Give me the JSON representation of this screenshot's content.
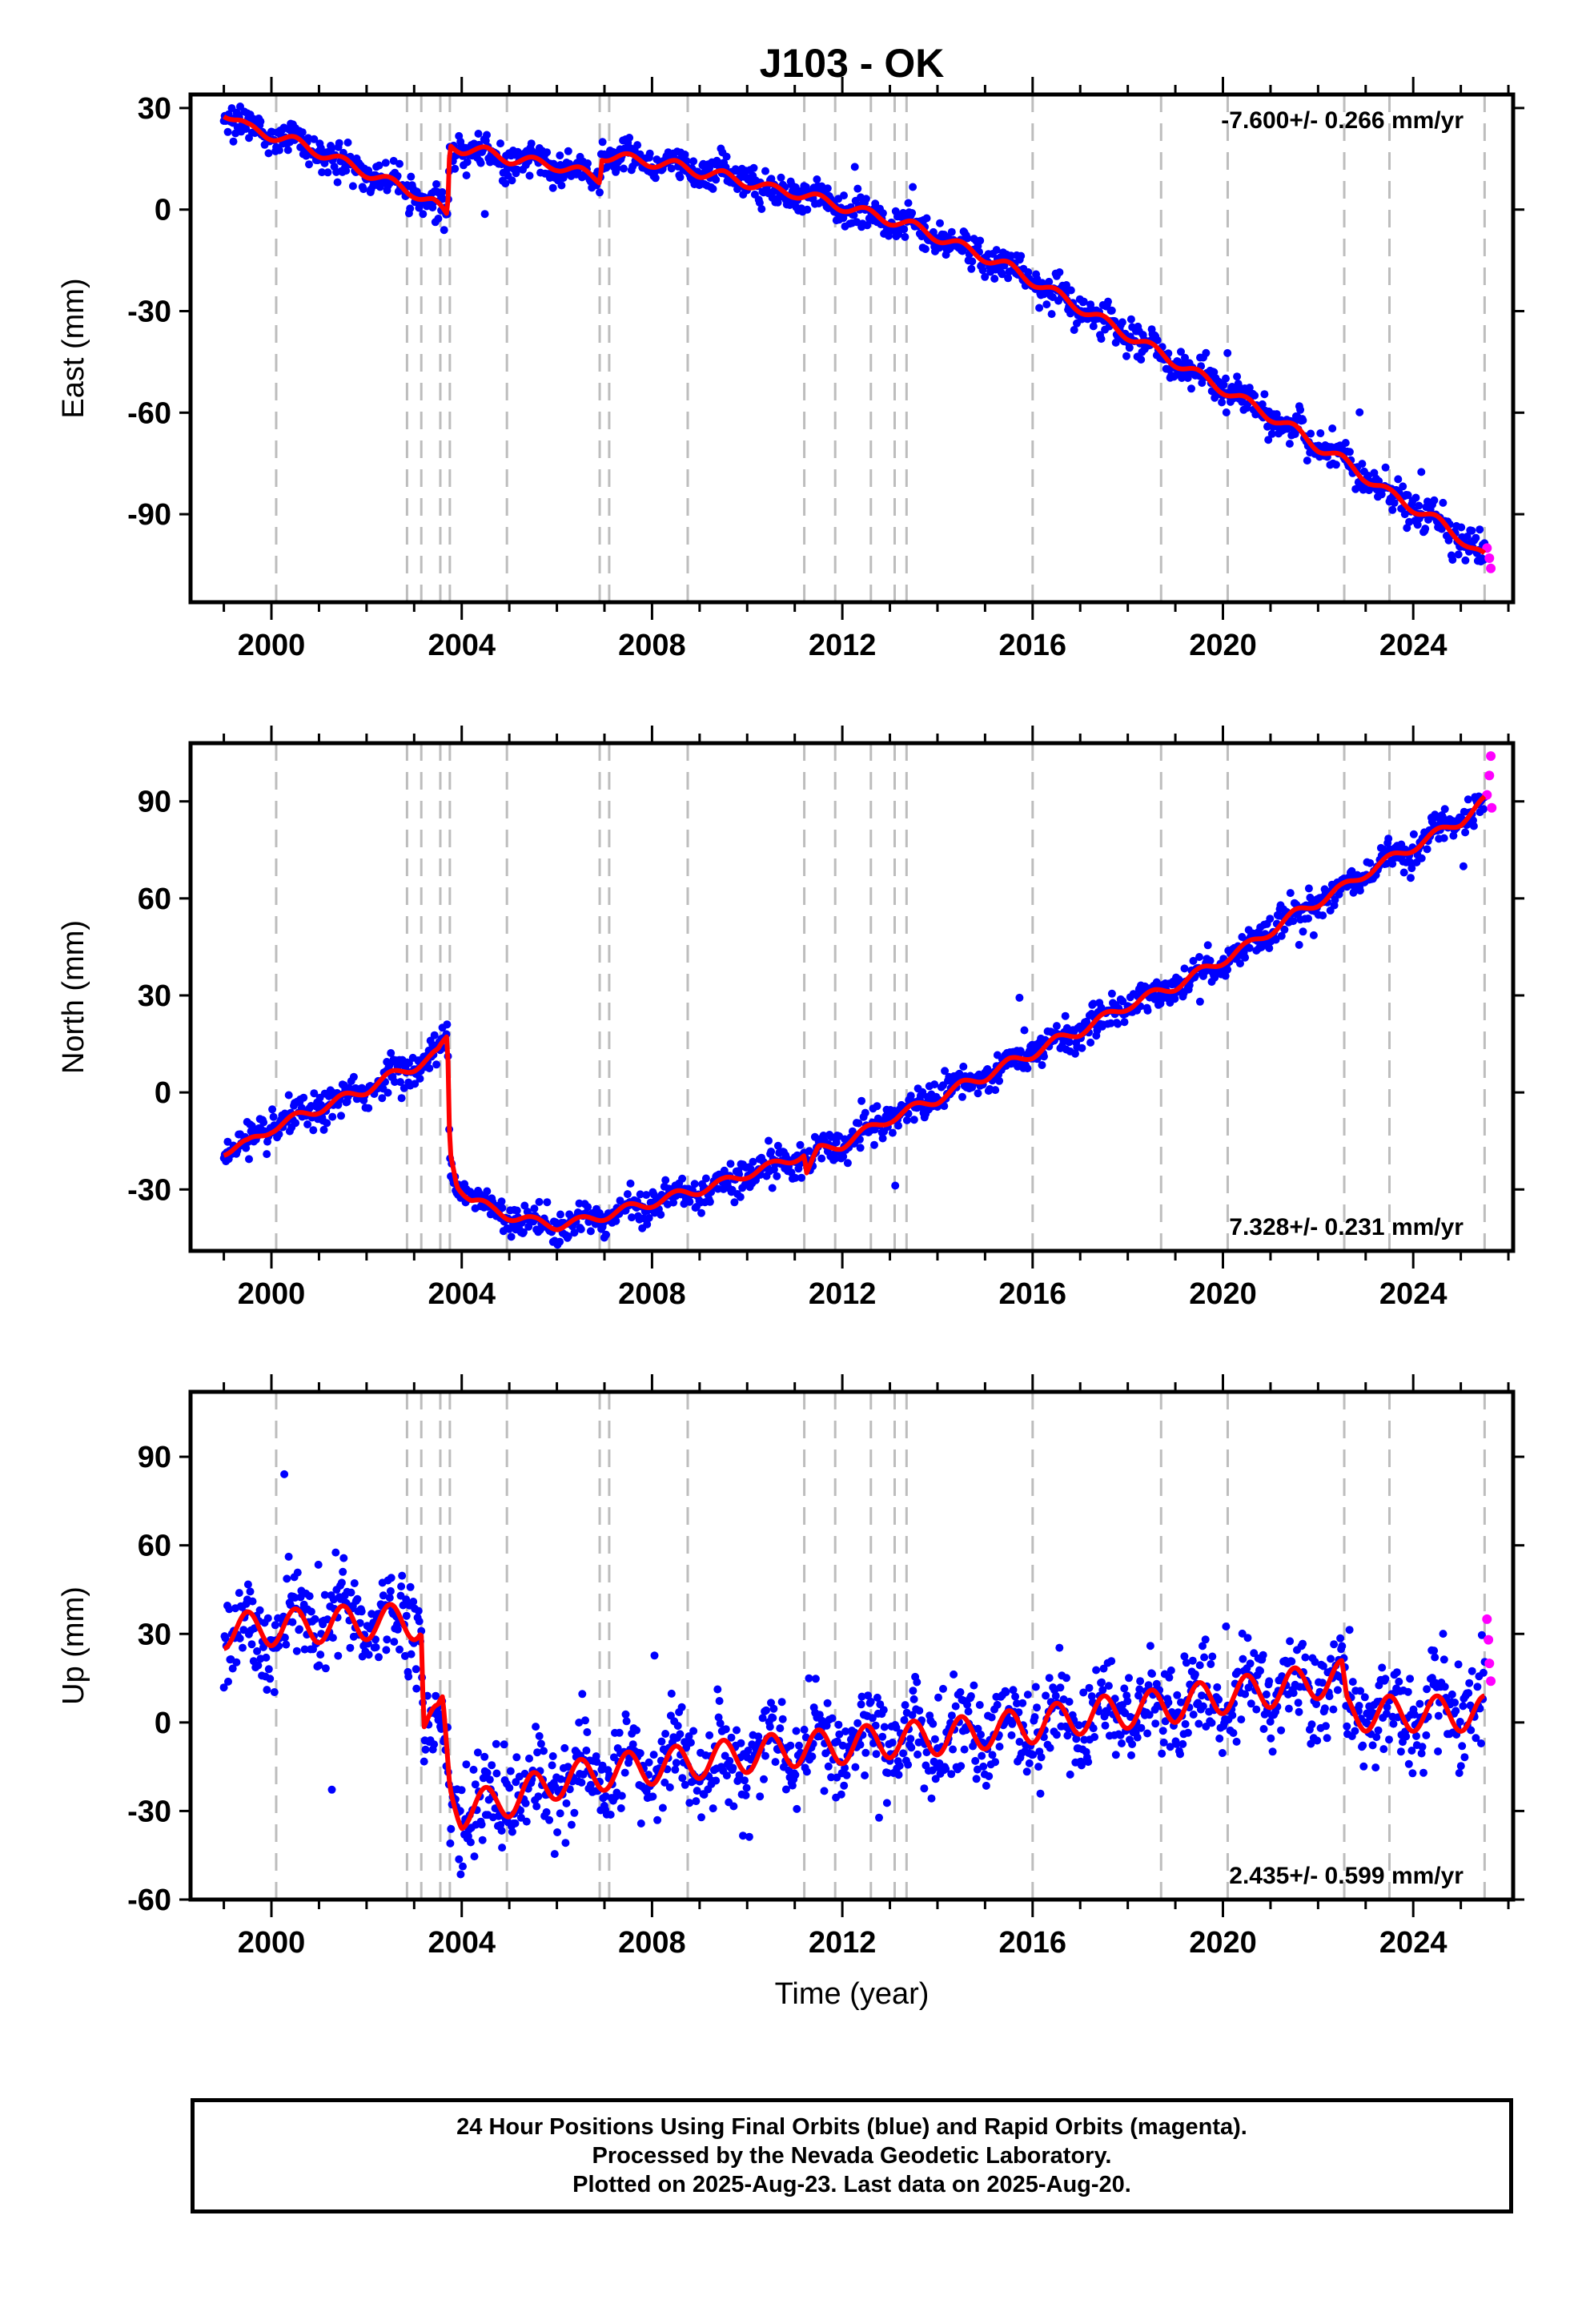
{
  "chart_data": [
    {
      "type": "scatter",
      "title": "J103 - OK",
      "xlabel": "",
      "ylabel": "East (mm)",
      "xlim": [
        1998.3,
        2026.1
      ],
      "ylim": [
        -116,
        34
      ],
      "xticks": [
        2000,
        2004,
        2008,
        2012,
        2016,
        2020,
        2024
      ],
      "yticks": [
        30,
        0,
        -30,
        -60,
        -90
      ],
      "annotation": "-7.600+/- 0.266 mm/yr",
      "annotation_position": "top-right",
      "grid": false,
      "event_lines": [
        2000.1,
        2002.85,
        2003.15,
        2003.55,
        2003.75,
        2004.95,
        2006.9,
        2007.1,
        2008.75,
        2011.2,
        2011.85,
        2012.6,
        2013.1,
        2013.35,
        2016.0,
        2018.7,
        2020.1,
        2022.55,
        2023.5,
        2025.5
      ],
      "colors": {
        "final": "#0000ff",
        "rapid": "#ff00ff",
        "model": "#ff0000",
        "event_line": "#bdbdbd"
      },
      "series": [
        {
          "name": "Final Orbits",
          "x": [
            1999.0,
            1999.5,
            2000.0,
            2000.5,
            2001.0,
            2001.5,
            2002.0,
            2002.5,
            2003.0,
            2003.4,
            2003.7,
            2003.75,
            2004.0,
            2004.5,
            2005.0,
            2005.5,
            2006.0,
            2006.5,
            2006.9,
            2006.95,
            2007.5,
            2008.0,
            2008.5,
            2009.0,
            2009.5,
            2010.0,
            2010.5,
            2011.0,
            2011.5,
            2012.0,
            2012.5,
            2013.0,
            2013.5,
            2014.0,
            2014.5,
            2015.0,
            2015.5,
            2016.0,
            2016.5,
            2017.0,
            2017.5,
            2018.0,
            2018.5,
            2019.0,
            2019.5,
            2020.0,
            2020.5,
            2021.0,
            2021.5,
            2022.0,
            2022.5,
            2023.0,
            2023.5,
            2024.0,
            2024.5,
            2025.0,
            2025.5
          ],
          "values": [
            28,
            24,
            22,
            20,
            17,
            14,
            11,
            8,
            5,
            2,
            -1,
            18,
            18,
            17,
            15,
            14,
            13,
            11,
            9,
            16,
            15,
            14,
            13,
            11,
            10,
            8,
            6,
            5,
            3,
            1,
            -1,
            -3,
            -5,
            -8,
            -11,
            -14,
            -17,
            -21,
            -25,
            -29,
            -33,
            -37,
            -41,
            -45,
            -49,
            -53,
            -57,
            -61,
            -65,
            -70,
            -74,
            -79,
            -84,
            -88,
            -92,
            -97,
            -102
          ],
          "spread": 2.5,
          "points": 1300
        },
        {
          "name": "Rapid Orbits",
          "x": [
            2025.55,
            2025.6,
            2025.63
          ],
          "values": [
            -100,
            -103,
            -106
          ]
        },
        {
          "name": "Model",
          "x": [
            1999.0,
            1999.5,
            2000.0,
            2000.5,
            2001.0,
            2001.5,
            2002.0,
            2002.5,
            2003.0,
            2003.4,
            2003.7,
            2003.75,
            2004.0,
            2004.5,
            2005.0,
            2005.5,
            2006.0,
            2006.5,
            2006.9,
            2006.95,
            2007.5,
            2008.0,
            2008.5,
            2009.0,
            2009.5,
            2010.0,
            2010.5,
            2011.0,
            2011.5,
            2012.0,
            2012.5,
            2013.0,
            2013.5,
            2014.0,
            2014.5,
            2015.0,
            2015.5,
            2016.0,
            2016.5,
            2017.0,
            2017.5,
            2018.0,
            2018.5,
            2019.0,
            2019.5,
            2020.0,
            2020.5,
            2021.0,
            2021.5,
            2022.0,
            2022.5,
            2023.0,
            2023.5,
            2024.0,
            2024.5,
            2025.0,
            2025.5
          ],
          "values": [
            29,
            24,
            22,
            20,
            17,
            14,
            11,
            8,
            5,
            2,
            -2,
            19,
            18,
            17,
            15,
            14,
            13,
            11,
            9,
            16,
            15,
            14,
            13,
            11,
            10,
            8,
            6,
            5,
            3,
            1,
            -1,
            -3,
            -5,
            -8,
            -11,
            -14,
            -17,
            -21,
            -25,
            -29,
            -33,
            -37,
            -41,
            -45,
            -49,
            -53,
            -57,
            -61,
            -65,
            -70,
            -74,
            -79,
            -84,
            -88,
            -92,
            -97,
            -103
          ],
          "seasonal": 1.5
        }
      ]
    },
    {
      "type": "scatter",
      "xlabel": "",
      "ylabel": "North (mm)",
      "xlim": [
        1998.3,
        2026.1
      ],
      "ylim": [
        -49,
        108
      ],
      "xticks": [
        2000,
        2004,
        2008,
        2012,
        2016,
        2020,
        2024
      ],
      "yticks": [
        90,
        60,
        30,
        0,
        -30
      ],
      "annotation": "7.328+/- 0.231 mm/yr",
      "annotation_position": "bottom-right",
      "grid": false,
      "event_lines": [
        2000.1,
        2002.85,
        2003.15,
        2003.55,
        2003.75,
        2004.95,
        2006.9,
        2007.1,
        2008.75,
        2011.2,
        2011.85,
        2012.6,
        2013.1,
        2013.35,
        2016.0,
        2018.7,
        2020.1,
        2022.55,
        2023.5,
        2025.5
      ],
      "colors": {
        "final": "#0000ff",
        "rapid": "#ff00ff",
        "model": "#ff0000",
        "event_line": "#bdbdbd"
      },
      "series": [
        {
          "name": "Final Orbits",
          "x": [
            1999.0,
            1999.5,
            2000.0,
            2000.5,
            2001.0,
            2001.5,
            2002.0,
            2002.5,
            2003.0,
            2003.5,
            2003.7,
            2003.75,
            2003.9,
            2004.2,
            2004.6,
            2005.0,
            2005.5,
            2006.0,
            2006.5,
            2007.0,
            2007.5,
            2008.0,
            2008.5,
            2009.0,
            2009.5,
            2010.0,
            2010.5,
            2011.0,
            2011.2,
            2011.25,
            2011.5,
            2012.0,
            2012.5,
            2013.0,
            2013.5,
            2014.0,
            2014.5,
            2015.0,
            2015.5,
            2016.0,
            2016.5,
            2017.0,
            2017.5,
            2018.0,
            2018.5,
            2019.0,
            2019.5,
            2020.0,
            2020.5,
            2021.0,
            2021.5,
            2022.0,
            2022.5,
            2023.0,
            2023.5,
            2024.0,
            2024.5,
            2025.0,
            2025.5
          ],
          "values": [
            -18,
            -16,
            -11,
            -8,
            -5,
            -2,
            1,
            5,
            8,
            12,
            17,
            -18,
            -27,
            -33,
            -36,
            -38,
            -40,
            -41,
            -40,
            -38,
            -36,
            -34,
            -32,
            -30,
            -28,
            -25,
            -23,
            -20,
            -19,
            -24,
            -18,
            -16,
            -12,
            -8,
            -5,
            -2,
            2,
            5,
            9,
            12,
            16,
            19,
            23,
            27,
            30,
            33,
            37,
            41,
            45,
            50,
            55,
            59,
            63,
            68,
            72,
            76,
            80,
            84,
            89
          ],
          "spread": 2.5,
          "points": 1300
        },
        {
          "name": "Rapid Orbits",
          "x": [
            2025.55,
            2025.6,
            2025.63,
            2025.65
          ],
          "values": [
            92,
            98,
            104,
            88
          ]
        },
        {
          "name": "Model",
          "x": [
            1999.0,
            1999.5,
            2000.0,
            2000.5,
            2001.0,
            2001.5,
            2002.0,
            2002.5,
            2003.0,
            2003.5,
            2003.7,
            2003.75,
            2003.9,
            2004.2,
            2004.6,
            2005.0,
            2005.5,
            2006.0,
            2006.5,
            2007.0,
            2007.5,
            2008.0,
            2008.5,
            2009.0,
            2009.5,
            2010.0,
            2010.5,
            2011.0,
            2011.2,
            2011.25,
            2011.5,
            2012.0,
            2012.5,
            2013.0,
            2013.5,
            2014.0,
            2014.5,
            2015.0,
            2015.5,
            2016.0,
            2016.5,
            2017.0,
            2017.5,
            2018.0,
            2018.5,
            2019.0,
            2019.5,
            2020.0,
            2020.5,
            2021.0,
            2021.5,
            2022.0,
            2022.5,
            2023.0,
            2023.5,
            2024.0,
            2024.5,
            2025.0,
            2025.5
          ],
          "values": [
            -18,
            -16,
            -11,
            -8,
            -5,
            -2,
            1,
            5,
            8,
            12,
            17,
            -18,
            -28,
            -33,
            -36,
            -38,
            -40,
            -41,
            -40,
            -38,
            -36,
            -34,
            -32,
            -30,
            -28,
            -25,
            -23,
            -20,
            -19,
            -25,
            -18,
            -16,
            -12,
            -8,
            -5,
            -2,
            2,
            5,
            9,
            12,
            16,
            19,
            23,
            27,
            30,
            33,
            37,
            41,
            45,
            50,
            55,
            59,
            63,
            68,
            72,
            76,
            80,
            84,
            90
          ],
          "seasonal": 1.5
        }
      ]
    },
    {
      "type": "scatter",
      "xlabel": "Time (year)",
      "ylabel": "Up (mm)",
      "xlim": [
        1998.3,
        2026.1
      ],
      "ylim": [
        -60,
        112
      ],
      "xticks": [
        2000,
        2004,
        2008,
        2012,
        2016,
        2020,
        2024
      ],
      "yticks": [
        90,
        60,
        30,
        0,
        -30,
        -60
      ],
      "annotation": "2.435+/- 0.599 mm/yr",
      "annotation_position": "bottom-right",
      "grid": false,
      "event_lines": [
        2000.1,
        2002.85,
        2003.15,
        2003.55,
        2003.75,
        2004.95,
        2006.9,
        2007.1,
        2008.75,
        2011.2,
        2011.85,
        2012.6,
        2013.1,
        2013.35,
        2016.0,
        2018.7,
        2020.1,
        2022.55,
        2023.5,
        2025.5
      ],
      "colors": {
        "final": "#0000ff",
        "rapid": "#ff00ff",
        "model": "#ff0000",
        "event_line": "#bdbdbd"
      },
      "series": [
        {
          "name": "Final Orbits",
          "x": [
            1999.0,
            2000.0,
            2001.0,
            2002.0,
            2003.0,
            2003.15,
            2003.2,
            2003.5,
            2003.6,
            2003.75,
            2004.0,
            2004.5,
            2005.0,
            2006.0,
            2007.0,
            2008.0,
            2009.0,
            2010.0,
            2011.0,
            2012.0,
            2013.0,
            2014.0,
            2015.0,
            2016.0,
            2017.0,
            2018.0,
            2019.0,
            2020.0,
            2021.0,
            2022.0,
            2022.5,
            2022.6,
            2023.0,
            2024.0,
            2025.0,
            2025.5
          ],
          "values": [
            31,
            32,
            33,
            34,
            34,
            34,
            0,
            0,
            4,
            -22,
            -30,
            -28,
            -26,
            -20,
            -17,
            -15,
            -13,
            -11,
            -9,
            -8,
            -6,
            -5,
            -3,
            -1,
            2,
            4,
            6,
            9,
            11,
            14,
            15,
            4,
            3,
            3,
            3,
            3
          ],
          "spread": 8,
          "points": 1400
        },
        {
          "name": "Rapid Orbits",
          "x": [
            2025.55,
            2025.58,
            2025.6,
            2025.63
          ],
          "values": [
            35,
            28,
            20,
            14
          ]
        },
        {
          "name": "Model",
          "x": [
            1999.0,
            2000.0,
            2001.0,
            2002.0,
            2003.0,
            2003.15,
            2003.2,
            2003.5,
            2003.6,
            2003.75,
            2004.0,
            2004.5,
            2005.0,
            2006.0,
            2007.0,
            2008.0,
            2009.0,
            2010.0,
            2011.0,
            2012.0,
            2013.0,
            2014.0,
            2015.0,
            2016.0,
            2017.0,
            2018.0,
            2019.0,
            2020.0,
            2021.0,
            2022.0,
            2022.5,
            2022.6,
            2023.0,
            2024.0,
            2025.0,
            2025.5
          ],
          "values": [
            31,
            32,
            33,
            34,
            34,
            34,
            0,
            0,
            4,
            -22,
            -30,
            -28,
            -26,
            -20,
            -17,
            -15,
            -13,
            -11,
            -9,
            -8,
            -6,
            -5,
            -3,
            -1,
            2,
            4,
            6,
            9,
            11,
            14,
            15,
            4,
            3,
            3,
            3,
            3
          ],
          "seasonal": 6
        }
      ]
    }
  ],
  "footer": {
    "lines": [
      "24 Hour Positions Using Final Orbits (blue) and Rapid Orbits (magenta).",
      "Processed by the Nevada Geodetic Laboratory.",
      "Plotted on 2025-Aug-23. Last data on 2025-Aug-20."
    ]
  }
}
